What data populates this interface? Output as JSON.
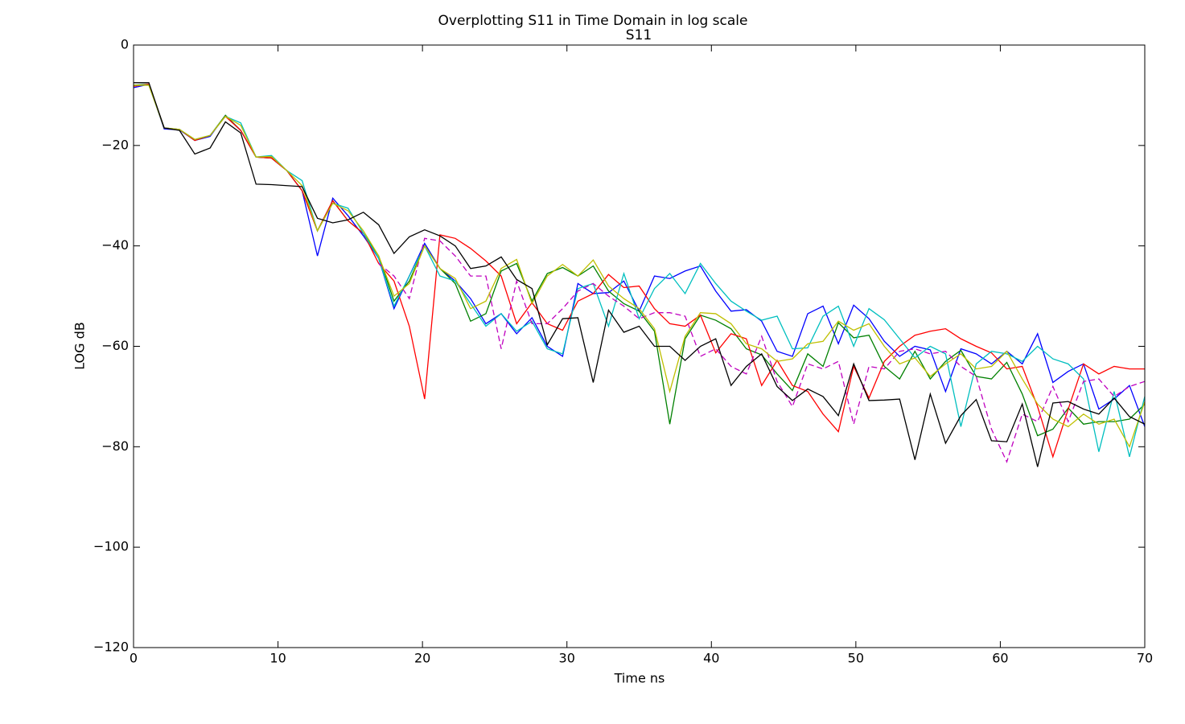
{
  "chart_data": {
    "type": "line",
    "suptitle": "Overplotting S11 in Time Domain in log scale",
    "title": "S11",
    "xlabel": "Time  ns",
    "ylabel": "LOG dB",
    "xlim": [
      0,
      70
    ],
    "ylim": [
      -120,
      0
    ],
    "xticks": [
      0,
      10,
      20,
      30,
      40,
      50,
      60,
      70
    ],
    "yticks": [
      0,
      {
        "value": -20,
        "label": "−20"
      },
      {
        "value": -40,
        "label": "−40"
      },
      {
        "value": -60,
        "label": "−60"
      },
      {
        "value": -80,
        "label": "−80"
      },
      {
        "value": -100,
        "label": "−100"
      },
      {
        "value": -120,
        "label": "−120"
      }
    ],
    "grid": false,
    "x": [
      0,
      1.06,
      2.12,
      3.18,
      4.24,
      5.3,
      6.36,
      7.42,
      8.48,
      9.55,
      10.61,
      11.67,
      12.73,
      13.79,
      14.85,
      15.91,
      16.97,
      18.03,
      19.09,
      20.15,
      21.21,
      22.27,
      23.33,
      24.39,
      25.45,
      26.52,
      27.58,
      28.64,
      29.7,
      30.76,
      31.82,
      32.88,
      33.94,
      35,
      36.06,
      37.12,
      38.18,
      39.24,
      40.3,
      41.36,
      42.42,
      43.48,
      44.55,
      45.61,
      46.67,
      47.73,
      48.79,
      49.85,
      50.91,
      51.97,
      53.03,
      54.09,
      55.15,
      56.21,
      57.27,
      58.33,
      59.39,
      60.45,
      61.52,
      62.58,
      63.64,
      64.7,
      65.76,
      66.82,
      67.88,
      68.94,
      70
    ],
    "series": [
      {
        "color": "#0000ff",
        "linestyle": "solid",
        "values": [
          -8.5,
          -7.8,
          -16.7,
          -16.9,
          -19,
          -18.2,
          -14,
          -17,
          -22.3,
          -22.5,
          -25,
          -29,
          -42,
          -30.5,
          -34,
          -38,
          -42.5,
          -52.5,
          -46,
          -39.5,
          -44.5,
          -47,
          -50.5,
          -55.5,
          -53.5,
          -57.5,
          -54.3,
          -60,
          -62,
          -47.5,
          -49.5,
          -49.3,
          -47,
          -53,
          -46,
          -46.5,
          -45,
          -44,
          -49,
          -53,
          -52.7,
          -55,
          -61,
          -62,
          -53.5,
          -52,
          -59.5,
          -51.8,
          -54.5,
          -59,
          -62,
          -60,
          -60.7,
          -69,
          -60.5,
          -61.5,
          -63.5,
          -61,
          -63.5,
          -57.5,
          -67.2,
          -65,
          -63.5,
          -72.5,
          -70.5,
          -67.8,
          -76
        ]
      },
      {
        "color": "#008000",
        "linestyle": "solid",
        "values": [
          -8,
          -7.8,
          -16.5,
          -16.8,
          -19,
          -18,
          -14,
          -17,
          -22.3,
          -22.5,
          -25,
          -29,
          -37,
          -31,
          -35,
          -37.5,
          -42,
          -51,
          -47,
          -40,
          -44.5,
          -47.5,
          -55,
          -53.5,
          -45,
          -43.5,
          -51,
          -45.5,
          -44.3,
          -46,
          -44,
          -49,
          -51.5,
          -53,
          -57,
          -75.5,
          -58.5,
          -53.8,
          -54.8,
          -56.5,
          -60.5,
          -61.7,
          -65.5,
          -68.8,
          -61.5,
          -64,
          -55.3,
          -58.3,
          -57.8,
          -64,
          -66.5,
          -61,
          -66.5,
          -63,
          -60.8,
          -66,
          -66.5,
          -63.2,
          -69.5,
          -77.8,
          -76.5,
          -72.3,
          -75.5,
          -75,
          -75,
          -74.5,
          -71.5
        ]
      },
      {
        "color": "#ff0000",
        "linestyle": "solid",
        "values": [
          -8.2,
          -7.8,
          -16.5,
          -16.8,
          -19,
          -18,
          -14.2,
          -17,
          -22.3,
          -22.5,
          -25,
          -29,
          -37,
          -31,
          -35,
          -37.5,
          -43.5,
          -47,
          -56,
          -70.5,
          -37.8,
          -38.5,
          -40.5,
          -43,
          -46,
          -55.5,
          -51.3,
          -55.5,
          -56.8,
          -51,
          -49.5,
          -45.7,
          -48.3,
          -48,
          -52.5,
          -55.5,
          -56,
          -53.8,
          -61.3,
          -57.5,
          -58.5,
          -67.8,
          -62.8,
          -67.8,
          -69,
          -73.5,
          -77,
          -64,
          -70.3,
          -63,
          -60,
          -57.8,
          -57,
          -56.5,
          -58.5,
          -60,
          -61.3,
          -64.5,
          -64,
          -72,
          -82,
          -72.5,
          -63.5,
          -65.5,
          -64,
          -64.5,
          -64.5
        ]
      },
      {
        "color": "#00bfbf",
        "linestyle": "solid",
        "values": [
          -8,
          -8,
          -16.5,
          -16.8,
          -18.8,
          -18,
          -14.2,
          -15.5,
          -22.3,
          -22,
          -25,
          -27,
          -37,
          -31.5,
          -32.5,
          -37.5,
          -42.5,
          -52,
          -46,
          -40,
          -46,
          -47,
          -51.5,
          -56,
          -53.5,
          -57,
          -55,
          -60.5,
          -61.5,
          -48.5,
          -47.5,
          -56,
          -45.5,
          -54.5,
          -48.5,
          -45.5,
          -49.5,
          -43.5,
          -47.5,
          -51,
          -53,
          -54.8,
          -54,
          -60.5,
          -60.3,
          -54,
          -52,
          -60,
          -52.5,
          -54.7,
          -58.5,
          -62.3,
          -60,
          -61.5,
          -76,
          -63.5,
          -61,
          -61.5,
          -63,
          -60,
          -62.5,
          -63.5,
          -66.5,
          -81,
          -69,
          -82,
          -70
        ]
      },
      {
        "color": "#bf00bf",
        "linestyle": "dashed",
        "values": [
          null,
          null,
          null,
          null,
          null,
          null,
          null,
          null,
          null,
          null,
          null,
          null,
          null,
          null,
          null,
          null,
          -43.5,
          -46,
          -50.5,
          -38.5,
          -39,
          -42,
          -46,
          -46,
          -60.5,
          -47,
          -55.5,
          -55.5,
          -52.5,
          -49,
          -47.5,
          -50,
          -52,
          -54.5,
          -53.3,
          -53.3,
          -54,
          -62,
          -60.5,
          -64,
          -65.5,
          -58,
          -67,
          -72,
          -63.5,
          -64.5,
          -63,
          -75.5,
          -64,
          -64.5,
          -61,
          -60.5,
          -61.5,
          -61,
          -64,
          -66,
          -76.5,
          -83,
          -73.5,
          -75,
          -68,
          -75,
          -67,
          -66.5,
          -70,
          -68,
          -67
        ]
      },
      {
        "color": "#bfbf00",
        "linestyle": "solid",
        "values": [
          -8,
          -8,
          -16.5,
          -16.8,
          -18.8,
          -18,
          -14.2,
          -16,
          -22.3,
          -22.2,
          -25,
          -28,
          -37,
          -31.5,
          -33,
          -37,
          -42,
          -50,
          -47.5,
          -40,
          -44.5,
          -46.5,
          -52.5,
          -51,
          -44.5,
          -42.7,
          -51.5,
          -46,
          -43.7,
          -46,
          -42.8,
          -48,
          -50.5,
          -52.5,
          -56.5,
          -69,
          -58,
          -53.3,
          -53.5,
          -55.5,
          -59.5,
          -60.5,
          -63,
          -62.5,
          -59.5,
          -59,
          -55,
          -56.8,
          -55.5,
          -60,
          -63.5,
          -62.3,
          -66,
          -63.5,
          -61.5,
          -64.5,
          -64,
          -61,
          -66.5,
          -71.5,
          -74.5,
          -76,
          -73.5,
          -75.5,
          -74.5,
          -80,
          -71
        ]
      },
      {
        "color": "#000000",
        "linestyle": "solid",
        "values": [
          -7.5,
          -7.5,
          -16.5,
          -17,
          -21.7,
          -20.5,
          -15.3,
          -17.5,
          -27.7,
          -27.8,
          -28,
          -28.2,
          -34.5,
          -35.4,
          -34.8,
          -33.3,
          -35.8,
          -41.5,
          -38.2,
          -36.8,
          -38,
          -40,
          -44.5,
          -44,
          -42.2,
          -46.7,
          -48.5,
          -59.7,
          -54.5,
          -54.3,
          -67.2,
          -52.8,
          -57.2,
          -56,
          -60,
          -60,
          -62.8,
          -60,
          -58.5,
          -67.8,
          -64,
          -61.5,
          -68,
          -70.8,
          -68.5,
          -70,
          -73.8,
          -63.5,
          -70.8,
          -70.7,
          -70.5,
          -82.6,
          -69.5,
          -79.3,
          -73.8,
          -70.6,
          -78.8,
          -79,
          -71.5,
          -84,
          -71.3,
          -71,
          -72.5,
          -73.5,
          -70.3,
          -74,
          -75.5
        ]
      }
    ]
  }
}
